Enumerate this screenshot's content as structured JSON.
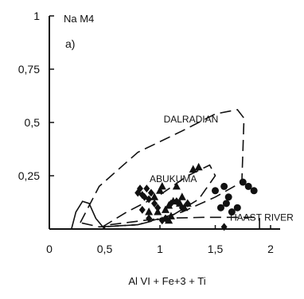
{
  "chart_data": {
    "type": "scatter",
    "panel_label": "a)",
    "ylabel": "Na M4",
    "xlabel": "Al VI + Fe+3 + Ti",
    "xlim": [
      0,
      2
    ],
    "ylim": [
      0,
      1
    ],
    "x_ticks": [
      {
        "value": 0,
        "label": "0"
      },
      {
        "value": 0.5,
        "label": "0,5"
      },
      {
        "value": 1,
        "label": "1"
      },
      {
        "value": 1.5,
        "label": "1,5"
      },
      {
        "value": 2,
        "label": "2"
      }
    ],
    "y_ticks": [
      {
        "value": 0.25,
        "label": "0,25"
      },
      {
        "value": 0.5,
        "label": "0,5"
      },
      {
        "value": 0.75,
        "label": "0,75"
      },
      {
        "value": 1,
        "label": "1"
      }
    ],
    "regions": [
      {
        "label": "DALRADIAN",
        "label_at": [
          1.28,
          0.5
        ],
        "points": [
          [
            0.28,
            0.03
          ],
          [
            0.45,
            0.2
          ],
          [
            0.8,
            0.36
          ],
          [
            1.2,
            0.46
          ],
          [
            1.5,
            0.54
          ],
          [
            1.7,
            0.56
          ],
          [
            1.76,
            0.52
          ],
          [
            1.74,
            0.22
          ],
          [
            1.5,
            0.15
          ],
          [
            1.2,
            0.08
          ],
          [
            0.8,
            0.02
          ],
          [
            0.45,
            0.01
          ],
          [
            0.28,
            0.03
          ]
        ]
      },
      {
        "label": "ABUKUMA",
        "label_at": [
          1.12,
          0.22
        ],
        "points": [
          [
            0.48,
            0.01
          ],
          [
            0.7,
            0.08
          ],
          [
            1.0,
            0.16
          ],
          [
            1.25,
            0.25
          ],
          [
            1.45,
            0.3
          ],
          [
            1.5,
            0.25
          ],
          [
            1.35,
            0.14
          ],
          [
            1.1,
            0.06
          ],
          [
            0.8,
            0.02
          ],
          [
            0.48,
            0.01
          ]
        ]
      },
      {
        "label": "HAAST RIVER",
        "label_at": [
          1.92,
          0.04
        ],
        "points": [
          [
            0.55,
            0.02
          ],
          [
            1.0,
            0.05
          ],
          [
            1.4,
            0.055
          ],
          [
            1.9,
            0.055
          ],
          [
            1.9,
            0.0
          ],
          [
            0.55,
            0.0
          ]
        ]
      },
      {
        "label": "",
        "label_at": null,
        "points": [
          [
            0.2,
            0.0
          ],
          [
            0.24,
            0.08
          ],
          [
            0.3,
            0.13
          ],
          [
            0.36,
            0.12
          ],
          [
            0.42,
            0.05
          ],
          [
            0.5,
            0.0
          ]
        ]
      }
    ],
    "series": [
      {
        "marker": "diamond",
        "points": [
          [
            0.8,
            0.17
          ],
          [
            0.82,
            0.19
          ],
          [
            0.84,
            0.16
          ],
          [
            0.86,
            0.15
          ],
          [
            0.88,
            0.19
          ],
          [
            0.9,
            0.14
          ],
          [
            0.92,
            0.17
          ],
          [
            0.95,
            0.12
          ],
          [
            0.98,
            0.1
          ],
          [
            1.02,
            0.04
          ],
          [
            1.05,
            0.05
          ],
          [
            1.1,
            0.12
          ],
          [
            1.15,
            0.13
          ],
          [
            1.2,
            0.1
          ],
          [
            1.25,
            0.12
          ],
          [
            0.84,
            0.09
          ],
          [
            0.9,
            0.05
          ],
          [
            1.58,
            0.01
          ]
        ]
      },
      {
        "marker": "triangle",
        "points": [
          [
            0.9,
            0.08
          ],
          [
            0.95,
            0.15
          ],
          [
            1.0,
            0.18
          ],
          [
            1.02,
            0.2
          ],
          [
            1.05,
            0.09
          ],
          [
            1.08,
            0.11
          ],
          [
            1.1,
            0.06
          ],
          [
            1.12,
            0.13
          ],
          [
            1.15,
            0.2
          ],
          [
            1.18,
            0.12
          ],
          [
            1.2,
            0.15
          ],
          [
            1.22,
            0.1
          ],
          [
            1.25,
            0.12
          ],
          [
            1.3,
            0.28
          ],
          [
            1.35,
            0.29
          ],
          [
            0.98,
            0.08
          ],
          [
            1.08,
            0.04
          ]
        ]
      },
      {
        "marker": "circle",
        "points": [
          [
            1.5,
            0.18
          ],
          [
            1.55,
            0.1
          ],
          [
            1.58,
            0.2
          ],
          [
            1.6,
            0.12
          ],
          [
            1.62,
            0.15
          ],
          [
            1.65,
            0.08
          ],
          [
            1.7,
            0.1
          ],
          [
            1.75,
            0.22
          ],
          [
            1.8,
            0.2
          ],
          [
            1.85,
            0.18
          ]
        ]
      }
    ],
    "colors": {
      "ink": "#111111",
      "background": "#ffffff"
    }
  }
}
